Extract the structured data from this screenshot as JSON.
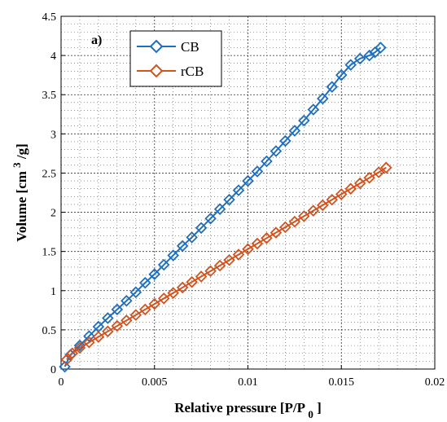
{
  "chart_data": {
    "type": "scatter",
    "panel_label": "a)",
    "xlabel": "Relative pressure [P/P",
    "xlabel_sub": "0",
    "xlabel_end": "]",
    "ylabel": "Volume [cm",
    "ylabel_sup": "3",
    "ylabel_end": "/g]",
    "xlim": [
      0,
      0.02
    ],
    "ylim": [
      0,
      4.5
    ],
    "x_ticks": [
      0,
      0.005,
      0.01,
      0.015,
      0.02
    ],
    "x_tick_labels": [
      "0",
      "0.005",
      "0.01",
      "0.015",
      "0.02"
    ],
    "y_ticks": [
      0,
      0.5,
      1,
      1.5,
      2,
      2.5,
      3,
      3.5,
      4,
      4.5
    ],
    "y_tick_labels": [
      "0",
      "0.5",
      "1",
      "1.5",
      "2",
      "2.5",
      "3",
      "3.5",
      "4",
      "4.5"
    ],
    "grid": true,
    "minor_grid": true,
    "legend_position": "top-left",
    "series": [
      {
        "name": "CB",
        "color": "#1f6fbd",
        "marker": "diamond-icon",
        "x": [
          0.0002,
          0.0005,
          0.001,
          0.0015,
          0.002,
          0.0025,
          0.003,
          0.0035,
          0.004,
          0.0045,
          0.005,
          0.0055,
          0.006,
          0.0065,
          0.007,
          0.0075,
          0.008,
          0.0085,
          0.009,
          0.0095,
          0.01,
          0.0105,
          0.011,
          0.0115,
          0.012,
          0.0125,
          0.013,
          0.0135,
          0.014,
          0.0145,
          0.015,
          0.0155,
          0.016,
          0.0165,
          0.0168,
          0.0171
        ],
        "y": [
          0.03,
          0.18,
          0.3,
          0.42,
          0.54,
          0.65,
          0.76,
          0.87,
          0.98,
          1.1,
          1.21,
          1.33,
          1.45,
          1.57,
          1.68,
          1.8,
          1.92,
          2.04,
          2.16,
          2.28,
          2.4,
          2.52,
          2.65,
          2.78,
          2.91,
          3.04,
          3.17,
          3.31,
          3.45,
          3.6,
          3.75,
          3.88,
          3.96,
          4.0,
          4.04,
          4.1
        ]
      },
      {
        "name": "rCB",
        "color": "#d1541f",
        "marker": "diamond-icon",
        "x": [
          0.0003,
          0.0006,
          0.001,
          0.0015,
          0.002,
          0.0025,
          0.003,
          0.0035,
          0.004,
          0.0045,
          0.005,
          0.0055,
          0.006,
          0.0065,
          0.007,
          0.0075,
          0.008,
          0.0085,
          0.009,
          0.0095,
          0.01,
          0.0105,
          0.011,
          0.0115,
          0.012,
          0.0125,
          0.013,
          0.0135,
          0.014,
          0.0145,
          0.015,
          0.0155,
          0.016,
          0.0165,
          0.017,
          0.0174
        ],
        "y": [
          0.12,
          0.2,
          0.27,
          0.34,
          0.41,
          0.48,
          0.55,
          0.62,
          0.69,
          0.76,
          0.83,
          0.9,
          0.97,
          1.04,
          1.11,
          1.18,
          1.25,
          1.32,
          1.39,
          1.46,
          1.53,
          1.6,
          1.67,
          1.74,
          1.81,
          1.88,
          1.95,
          2.02,
          2.09,
          2.16,
          2.23,
          2.3,
          2.37,
          2.44,
          2.51,
          2.57
        ]
      }
    ]
  }
}
